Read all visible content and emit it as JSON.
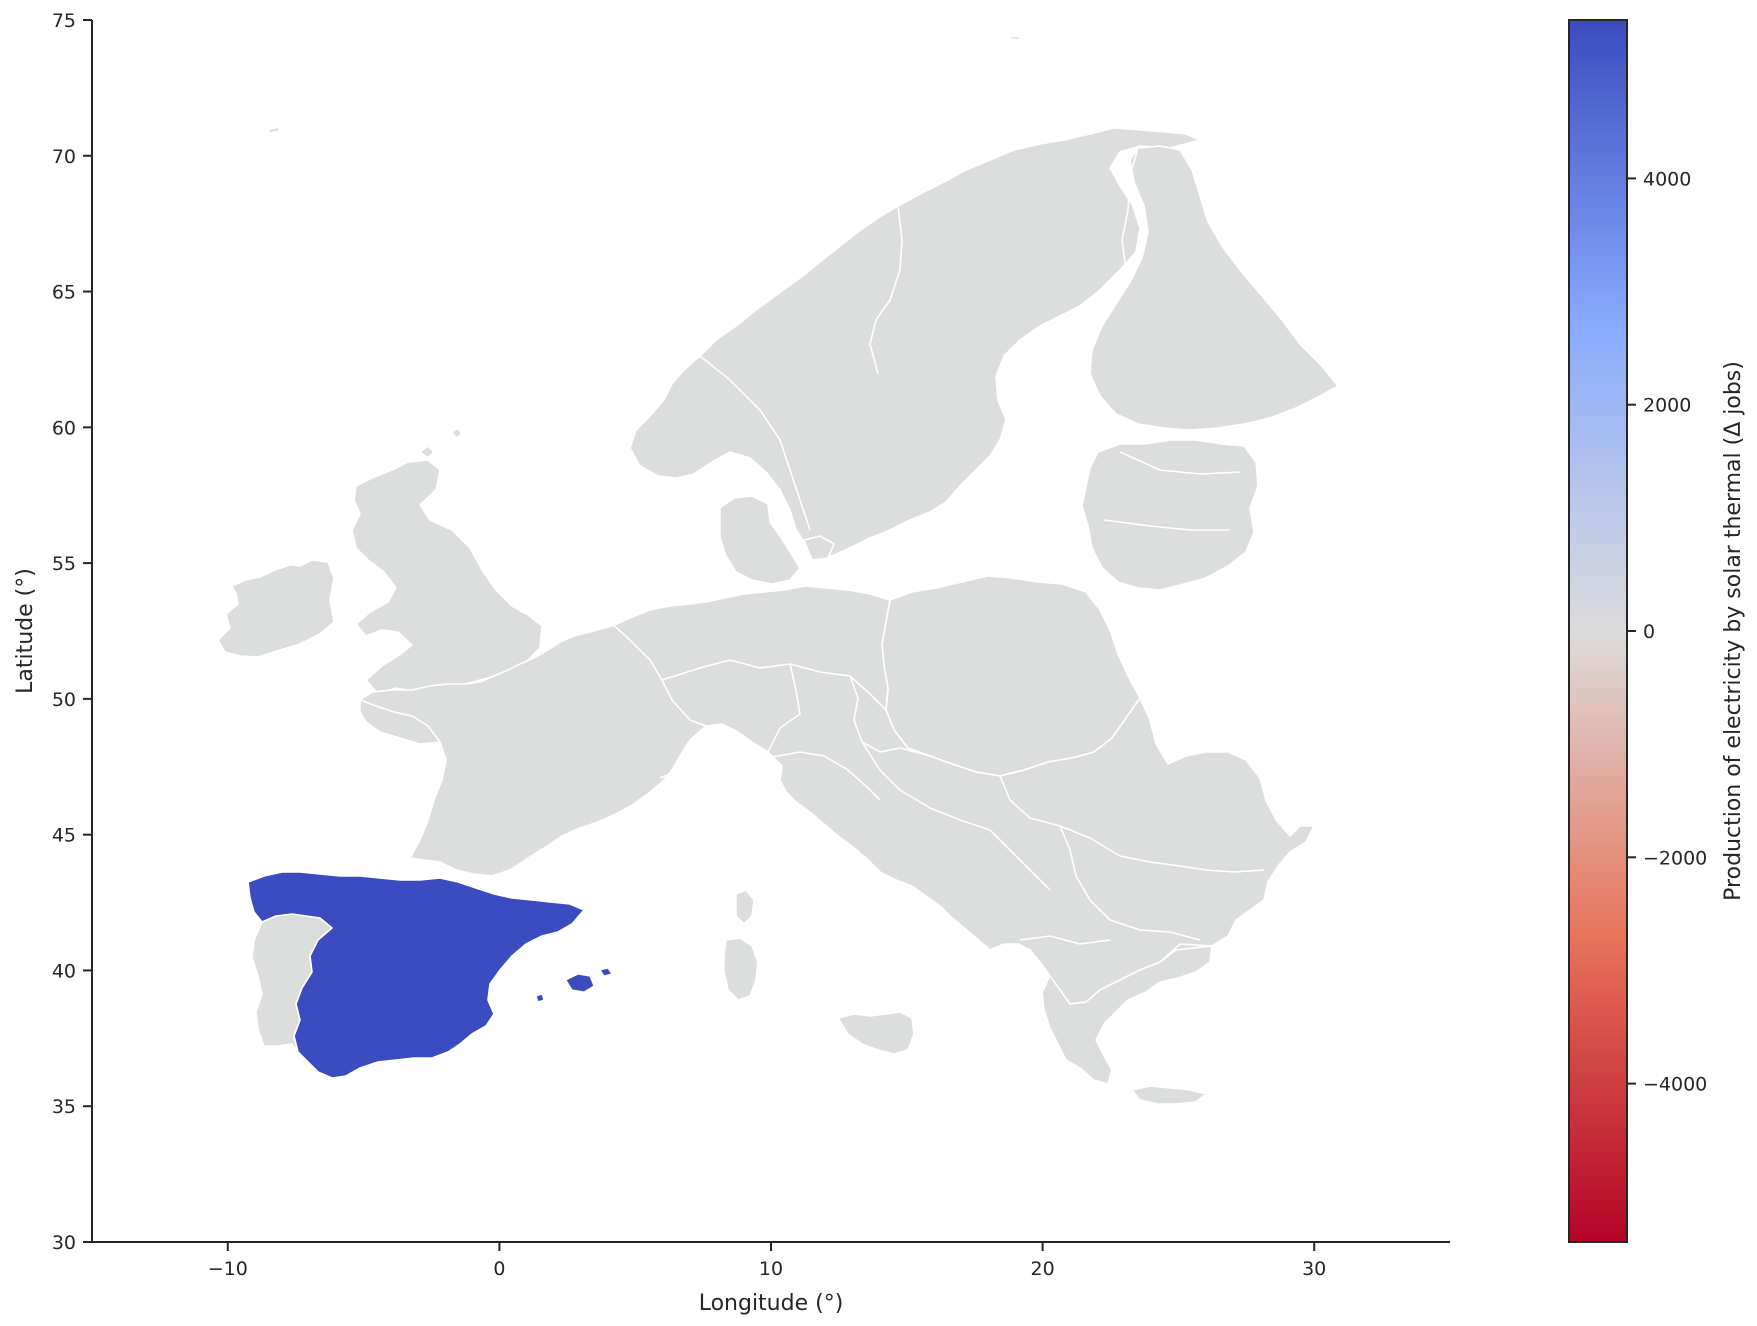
{
  "chart_data": {
    "type": "choropleth",
    "x_axis": {
      "label": "Longitude (°)",
      "range": [
        -15,
        35
      ],
      "ticks": [
        -10,
        0,
        10,
        20,
        30
      ],
      "tick_labels": [
        "−10",
        "0",
        "10",
        "20",
        "30"
      ]
    },
    "y_axis": {
      "label": "Latitude (°)",
      "range": [
        30,
        75
      ],
      "ticks": [
        30,
        35,
        40,
        45,
        50,
        55,
        60,
        65,
        70,
        75
      ],
      "tick_labels": [
        "30",
        "35",
        "40",
        "45",
        "50",
        "55",
        "60",
        "65",
        "70",
        "75"
      ]
    },
    "colorbar": {
      "label": "Production of electricity by solar thermal (Δ jobs)",
      "colormap": "coolwarm_r",
      "range": [
        -5400,
        5400
      ],
      "ticks": [
        -4000,
        -2000,
        0,
        2000,
        4000
      ],
      "tick_labels": [
        "−4000",
        "−2000",
        "0",
        "2000",
        "4000"
      ],
      "colors": [
        "#b40426",
        "#e7745b",
        "#dddcdc",
        "#88abfd",
        "#3b4cc0"
      ]
    },
    "regions": [
      {
        "country": "Spain",
        "value": 5400,
        "color": "#3b4cc0"
      }
    ],
    "default_region_color": "#dcdddd",
    "grid": false
  }
}
